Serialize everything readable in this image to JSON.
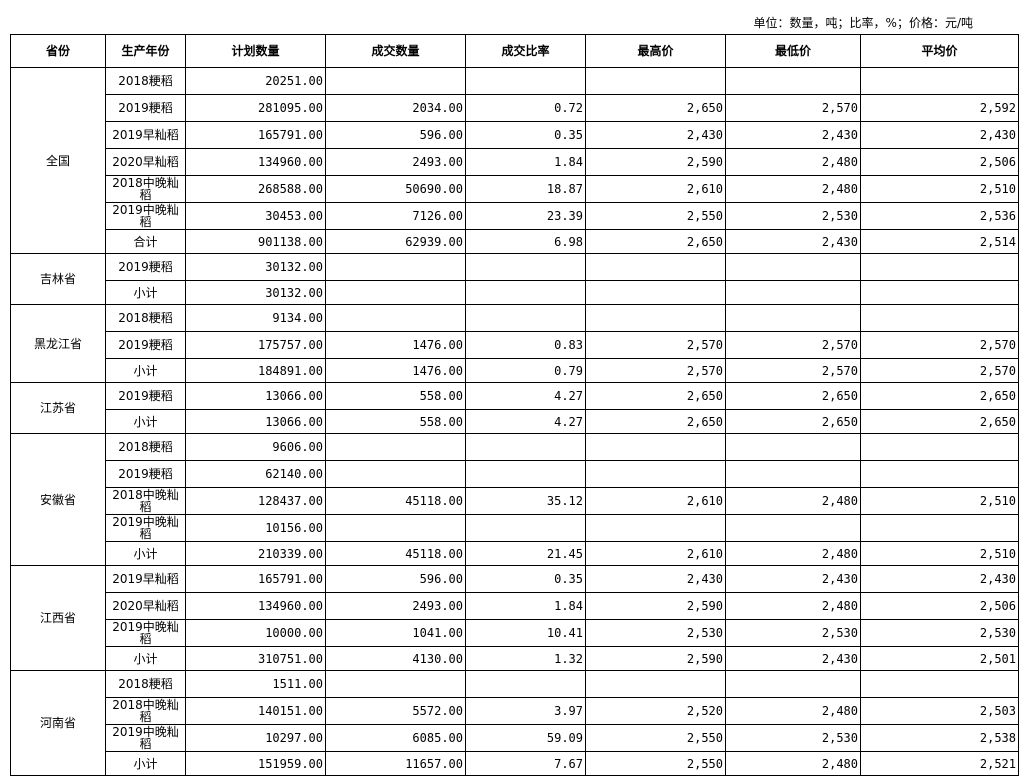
{
  "unit_note": "单位：数量，吨；比率，%；价格：元/吨",
  "headers": [
    "省份",
    "生产年份",
    "计划数量",
    "成交数量",
    "成交比率",
    "最高价",
    "最低价",
    "平均价"
  ],
  "sections": [
    {
      "province": "全国",
      "rows": [
        [
          "2018粳稻",
          "20251.00",
          "",
          "",
          "",
          "",
          ""
        ],
        [
          "2019粳稻",
          "281095.00",
          "2034.00",
          "0.72",
          "2,650",
          "2,570",
          "2,592"
        ],
        [
          "2019早籼稻",
          "165791.00",
          "596.00",
          "0.35",
          "2,430",
          "2,430",
          "2,430"
        ],
        [
          "2020早籼稻",
          "134960.00",
          "2493.00",
          "1.84",
          "2,590",
          "2,480",
          "2,506"
        ],
        [
          "2018中晚籼稻",
          "268588.00",
          "50690.00",
          "18.87",
          "2,610",
          "2,480",
          "2,510"
        ],
        [
          "2019中晚籼稻",
          "30453.00",
          "7126.00",
          "23.39",
          "2,550",
          "2,530",
          "2,536"
        ],
        [
          "合计",
          "901138.00",
          "62939.00",
          "6.98",
          "2,650",
          "2,430",
          "2,514"
        ]
      ]
    },
    {
      "province": "吉林省",
      "rows": [
        [
          "2019粳稻",
          "30132.00",
          "",
          "",
          "",
          "",
          ""
        ],
        [
          "小计",
          "30132.00",
          "",
          "",
          "",
          "",
          ""
        ]
      ]
    },
    {
      "province": "黑龙江省",
      "rows": [
        [
          "2018粳稻",
          "9134.00",
          "",
          "",
          "",
          "",
          ""
        ],
        [
          "2019粳稻",
          "175757.00",
          "1476.00",
          "0.83",
          "2,570",
          "2,570",
          "2,570"
        ],
        [
          "小计",
          "184891.00",
          "1476.00",
          "0.79",
          "2,570",
          "2,570",
          "2,570"
        ]
      ]
    },
    {
      "province": "江苏省",
      "rows": [
        [
          "2019粳稻",
          "13066.00",
          "558.00",
          "4.27",
          "2,650",
          "2,650",
          "2,650"
        ],
        [
          "小计",
          "13066.00",
          "558.00",
          "4.27",
          "2,650",
          "2,650",
          "2,650"
        ]
      ]
    },
    {
      "province": "安徽省",
      "rows": [
        [
          "2018粳稻",
          "9606.00",
          "",
          "",
          "",
          "",
          ""
        ],
        [
          "2019粳稻",
          "62140.00",
          "",
          "",
          "",
          "",
          ""
        ],
        [
          "2018中晚籼稻",
          "128437.00",
          "45118.00",
          "35.12",
          "2,610",
          "2,480",
          "2,510"
        ],
        [
          "2019中晚籼稻",
          "10156.00",
          "",
          "",
          "",
          "",
          ""
        ],
        [
          "小计",
          "210339.00",
          "45118.00",
          "21.45",
          "2,610",
          "2,480",
          "2,510"
        ]
      ]
    },
    {
      "province": "江西省",
      "rows": [
        [
          "2019早籼稻",
          "165791.00",
          "596.00",
          "0.35",
          "2,430",
          "2,430",
          "2,430"
        ],
        [
          "2020早籼稻",
          "134960.00",
          "2493.00",
          "1.84",
          "2,590",
          "2,480",
          "2,506"
        ],
        [
          "2019中晚籼稻",
          "10000.00",
          "1041.00",
          "10.41",
          "2,530",
          "2,530",
          "2,530"
        ],
        [
          "小计",
          "310751.00",
          "4130.00",
          "1.32",
          "2,590",
          "2,430",
          "2,501"
        ]
      ]
    },
    {
      "province": "河南省",
      "rows": [
        [
          "2018粳稻",
          "1511.00",
          "",
          "",
          "",
          "",
          ""
        ],
        [
          "2018中晚籼稻",
          "140151.00",
          "5572.00",
          "3.97",
          "2,520",
          "2,480",
          "2,503"
        ],
        [
          "2019中晚籼稻",
          "10297.00",
          "6085.00",
          "59.09",
          "2,550",
          "2,530",
          "2,538"
        ],
        [
          "小计",
          "151959.00",
          "11657.00",
          "7.67",
          "2,550",
          "2,480",
          "2,521"
        ]
      ]
    }
  ]
}
